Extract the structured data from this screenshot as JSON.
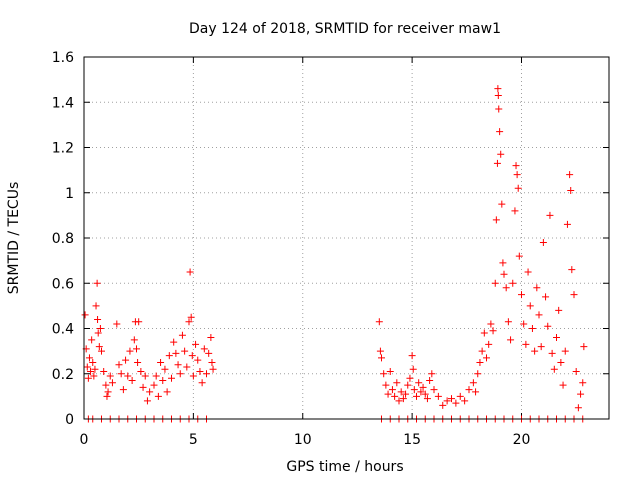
{
  "chart_data": {
    "type": "scatter",
    "title": "Day 124 of 2018, SRMTID for receiver maw1",
    "xlabel": "GPS time / hours",
    "ylabel": "SRMTID / TECUs",
    "xlim": [
      0,
      24
    ],
    "ylim": [
      0,
      1.6
    ],
    "xticks": [
      0,
      5,
      10,
      15,
      20
    ],
    "yticks": [
      0,
      0.2,
      0.4,
      0.6,
      0.8,
      1,
      1.2,
      1.4,
      1.6
    ],
    "ytick_labels": [
      "0",
      "0.2",
      "0.4",
      "0.6",
      "0.8",
      "1",
      "1.2",
      "1.4",
      "1.6"
    ],
    "grid": true,
    "marker": "+",
    "color": "#ff0000",
    "series": [
      {
        "name": "maw1",
        "points": [
          [
            0.05,
            0.46
          ],
          [
            0.1,
            0.31
          ],
          [
            0.15,
            0.23
          ],
          [
            0.2,
            0.18
          ],
          [
            0.25,
            0.27
          ],
          [
            0.3,
            0.21
          ],
          [
            0.35,
            0.35
          ],
          [
            0.4,
            0.25
          ],
          [
            0.45,
            0.19
          ],
          [
            0.5,
            0.22
          ],
          [
            0.55,
            0.5
          ],
          [
            0.6,
            0.6
          ],
          [
            0.62,
            0.44
          ],
          [
            0.65,
            0.38
          ],
          [
            0.7,
            0.32
          ],
          [
            0.75,
            0.4
          ],
          [
            0.8,
            0.3
          ],
          [
            0.9,
            0.21
          ],
          [
            1.0,
            0.15
          ],
          [
            1.05,
            0.1
          ],
          [
            1.1,
            0.12
          ],
          [
            1.2,
            0.19
          ],
          [
            1.3,
            0.16
          ],
          [
            1.5,
            0.42
          ],
          [
            1.6,
            0.24
          ],
          [
            1.7,
            0.2
          ],
          [
            1.8,
            0.13
          ],
          [
            1.9,
            0.26
          ],
          [
            2.0,
            0.19
          ],
          [
            2.1,
            0.3
          ],
          [
            2.2,
            0.17
          ],
          [
            2.3,
            0.35
          ],
          [
            2.35,
            0.43
          ],
          [
            2.4,
            0.31
          ],
          [
            2.45,
            0.25
          ],
          [
            2.5,
            0.43
          ],
          [
            2.6,
            0.21
          ],
          [
            2.7,
            0.14
          ],
          [
            2.8,
            0.19
          ],
          [
            2.9,
            0.08
          ],
          [
            3.0,
            0.12
          ],
          [
            3.2,
            0.15
          ],
          [
            3.3,
            0.19
          ],
          [
            3.4,
            0.1
          ],
          [
            3.5,
            0.25
          ],
          [
            3.6,
            0.17
          ],
          [
            3.7,
            0.22
          ],
          [
            3.8,
            0.12
          ],
          [
            3.9,
            0.28
          ],
          [
            4.0,
            0.18
          ],
          [
            4.1,
            0.34
          ],
          [
            4.2,
            0.29
          ],
          [
            4.3,
            0.24
          ],
          [
            4.4,
            0.2
          ],
          [
            4.5,
            0.37
          ],
          [
            4.6,
            0.3
          ],
          [
            4.7,
            0.23
          ],
          [
            4.8,
            0.43
          ],
          [
            4.85,
            0.65
          ],
          [
            4.9,
            0.45
          ],
          [
            4.95,
            0.28
          ],
          [
            5.0,
            0.19
          ],
          [
            5.1,
            0.33
          ],
          [
            5.2,
            0.26
          ],
          [
            5.3,
            0.21
          ],
          [
            5.4,
            0.16
          ],
          [
            5.5,
            0.31
          ],
          [
            5.6,
            0.2
          ],
          [
            5.7,
            0.29
          ],
          [
            5.8,
            0.36
          ],
          [
            5.85,
            0.25
          ],
          [
            5.9,
            0.22
          ],
          [
            0.2,
            0.0
          ],
          [
            0.4,
            0.0
          ],
          [
            0.8,
            0.0
          ],
          [
            1.2,
            0.0
          ],
          [
            1.6,
            0.0
          ],
          [
            2.0,
            0.0
          ],
          [
            2.4,
            0.0
          ],
          [
            2.8,
            0.0
          ],
          [
            3.2,
            0.0
          ],
          [
            3.6,
            0.0
          ],
          [
            4.0,
            0.0
          ],
          [
            4.4,
            0.0
          ],
          [
            4.8,
            0.0
          ],
          [
            5.2,
            0.0
          ],
          [
            5.6,
            0.0
          ],
          [
            13.5,
            0.43
          ],
          [
            13.55,
            0.3
          ],
          [
            13.6,
            0.27
          ],
          [
            13.7,
            0.2
          ],
          [
            13.8,
            0.15
          ],
          [
            13.9,
            0.11
          ],
          [
            14.0,
            0.21
          ],
          [
            14.1,
            0.13
          ],
          [
            14.2,
            0.1
          ],
          [
            14.3,
            0.16
          ],
          [
            14.4,
            0.08
          ],
          [
            14.5,
            0.12
          ],
          [
            14.6,
            0.09
          ],
          [
            14.7,
            0.11
          ],
          [
            14.8,
            0.15
          ],
          [
            14.9,
            0.18
          ],
          [
            15.0,
            0.28
          ],
          [
            15.05,
            0.22
          ],
          [
            15.1,
            0.13
          ],
          [
            15.2,
            0.1
          ],
          [
            15.3,
            0.16
          ],
          [
            15.4,
            0.12
          ],
          [
            15.5,
            0.14
          ],
          [
            15.6,
            0.11
          ],
          [
            15.7,
            0.09
          ],
          [
            15.8,
            0.17
          ],
          [
            15.9,
            0.2
          ],
          [
            16.0,
            0.13
          ],
          [
            16.2,
            0.1
          ],
          [
            16.4,
            0.06
          ],
          [
            16.6,
            0.08
          ],
          [
            16.8,
            0.09
          ],
          [
            17.0,
            0.07
          ],
          [
            17.2,
            0.1
          ],
          [
            17.4,
            0.08
          ],
          [
            17.6,
            0.13
          ],
          [
            17.8,
            0.16
          ],
          [
            17.9,
            0.12
          ],
          [
            18.0,
            0.2
          ],
          [
            18.1,
            0.25
          ],
          [
            18.2,
            0.3
          ],
          [
            18.3,
            0.38
          ],
          [
            18.4,
            0.27
          ],
          [
            18.5,
            0.33
          ],
          [
            18.6,
            0.42
          ],
          [
            18.7,
            0.39
          ],
          [
            18.8,
            0.6
          ],
          [
            18.85,
            0.88
          ],
          [
            18.9,
            1.13
          ],
          [
            18.92,
            1.46
          ],
          [
            18.94,
            1.43
          ],
          [
            18.96,
            1.37
          ],
          [
            19.0,
            1.27
          ],
          [
            19.05,
            1.17
          ],
          [
            19.1,
            0.95
          ],
          [
            19.15,
            0.69
          ],
          [
            19.2,
            0.64
          ],
          [
            19.3,
            0.58
          ],
          [
            19.4,
            0.43
          ],
          [
            19.5,
            0.35
          ],
          [
            19.6,
            0.6
          ],
          [
            19.7,
            0.92
          ],
          [
            19.75,
            1.12
          ],
          [
            19.8,
            1.08
          ],
          [
            19.85,
            1.02
          ],
          [
            19.9,
            0.72
          ],
          [
            20.0,
            0.55
          ],
          [
            20.1,
            0.42
          ],
          [
            20.2,
            0.33
          ],
          [
            20.3,
            0.65
          ],
          [
            20.4,
            0.5
          ],
          [
            20.5,
            0.4
          ],
          [
            20.6,
            0.3
          ],
          [
            20.7,
            0.58
          ],
          [
            20.8,
            0.46
          ],
          [
            20.9,
            0.32
          ],
          [
            21.0,
            0.78
          ],
          [
            21.1,
            0.54
          ],
          [
            21.2,
            0.41
          ],
          [
            21.3,
            0.9
          ],
          [
            21.4,
            0.29
          ],
          [
            21.5,
            0.22
          ],
          [
            21.6,
            0.36
          ],
          [
            21.7,
            0.48
          ],
          [
            21.8,
            0.25
          ],
          [
            21.9,
            0.15
          ],
          [
            22.0,
            0.3
          ],
          [
            22.1,
            0.86
          ],
          [
            22.2,
            1.08
          ],
          [
            22.25,
            1.01
          ],
          [
            22.3,
            0.66
          ],
          [
            22.4,
            0.55
          ],
          [
            22.5,
            0.21
          ],
          [
            22.6,
            0.05
          ],
          [
            22.7,
            0.11
          ],
          [
            22.8,
            0.16
          ],
          [
            22.85,
            0.32
          ],
          [
            13.6,
            0.0
          ],
          [
            14.0,
            0.0
          ],
          [
            14.4,
            0.0
          ],
          [
            14.8,
            0.0
          ],
          [
            15.2,
            0.0
          ],
          [
            15.6,
            0.0
          ],
          [
            16.0,
            0.0
          ],
          [
            16.4,
            0.0
          ],
          [
            16.8,
            0.0
          ],
          [
            17.2,
            0.0
          ],
          [
            17.6,
            0.0
          ],
          [
            18.0,
            0.0
          ],
          [
            18.4,
            0.0
          ],
          [
            18.8,
            0.0
          ],
          [
            19.2,
            0.0
          ],
          [
            19.6,
            0.0
          ],
          [
            20.0,
            0.0
          ],
          [
            20.4,
            0.0
          ],
          [
            20.8,
            0.0
          ],
          [
            21.2,
            0.0
          ],
          [
            21.6,
            0.0
          ],
          [
            22.0,
            0.0
          ],
          [
            22.4,
            0.0
          ],
          [
            22.8,
            0.0
          ]
        ]
      }
    ]
  }
}
